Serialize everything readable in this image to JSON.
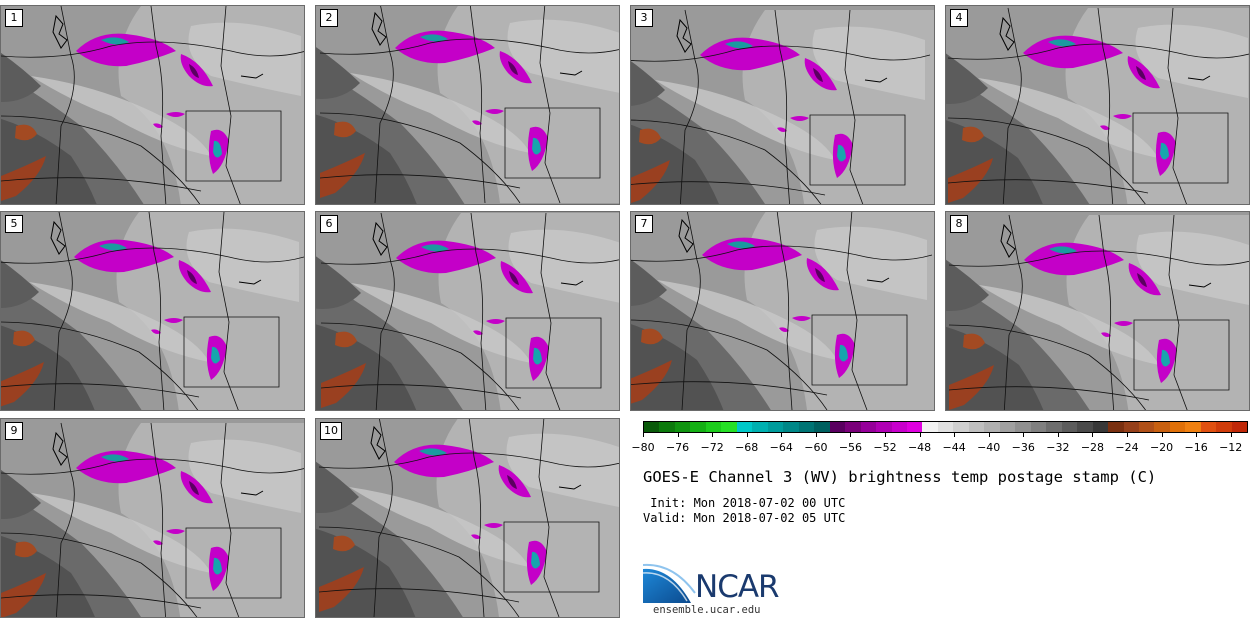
{
  "panels": [
    {
      "label": "1",
      "shift": [
        0,
        0
      ]
    },
    {
      "label": "2",
      "shift": [
        4,
        -3
      ]
    },
    {
      "label": "3",
      "shift": [
        -6,
        4
      ]
    },
    {
      "label": "4",
      "shift": [
        2,
        2
      ]
    },
    {
      "label": "5",
      "shift": [
        -2,
        0
      ]
    },
    {
      "label": "6",
      "shift": [
        5,
        1
      ]
    },
    {
      "label": "7",
      "shift": [
        -4,
        -2
      ]
    },
    {
      "label": "8",
      "shift": [
        3,
        3
      ]
    },
    {
      "label": "9",
      "shift": [
        0,
        4
      ]
    },
    {
      "label": "10",
      "shift": [
        3,
        -2
      ]
    }
  ],
  "colorbar": {
    "colors": [
      "#0a5a0a",
      "#0c7a0c",
      "#109410",
      "#14b014",
      "#1ccc1c",
      "#26e026",
      "#00c8c8",
      "#00b0b0",
      "#009c9c",
      "#008888",
      "#007474",
      "#006060",
      "#5a0060",
      "#7a007a",
      "#96009a",
      "#b000b4",
      "#c800cc",
      "#e000e0",
      "#f2f2f2",
      "#e0e0e0",
      "#cfcfcf",
      "#bfbfbf",
      "#b0b0b0",
      "#a0a0a0",
      "#909090",
      "#808080",
      "#6e6e6e",
      "#5c5c5c",
      "#4a4a4a",
      "#383838",
      "#7a3010",
      "#96401a",
      "#b05018",
      "#c86010",
      "#e07008",
      "#f08010",
      "#e05010",
      "#d03c0a",
      "#c02808"
    ],
    "tick_labels": [
      "−80",
      "−76",
      "−72",
      "−68",
      "−64",
      "−60",
      "−56",
      "−52",
      "−48",
      "−44",
      "−40",
      "−36",
      "−32",
      "−28",
      "−24",
      "−20",
      "−16",
      "−12"
    ],
    "tick_values": [
      -80,
      -76,
      -72,
      -68,
      -64,
      -60,
      -56,
      -52,
      -48,
      -44,
      -40,
      -36,
      -32,
      -28,
      -24,
      -20,
      -16,
      -12
    ],
    "vmin": -80,
    "vmax": -10
  },
  "title": "GOES-E Channel 3 (WV) brightness temp postage stamp (C)",
  "init_line": " Init: Mon 2018-07-02 00 UTC",
  "valid_line": "Valid: Mon 2018-07-02 05 UTC",
  "logo": {
    "text": "NCAR",
    "url": "ensemble.ucar.edu"
  }
}
